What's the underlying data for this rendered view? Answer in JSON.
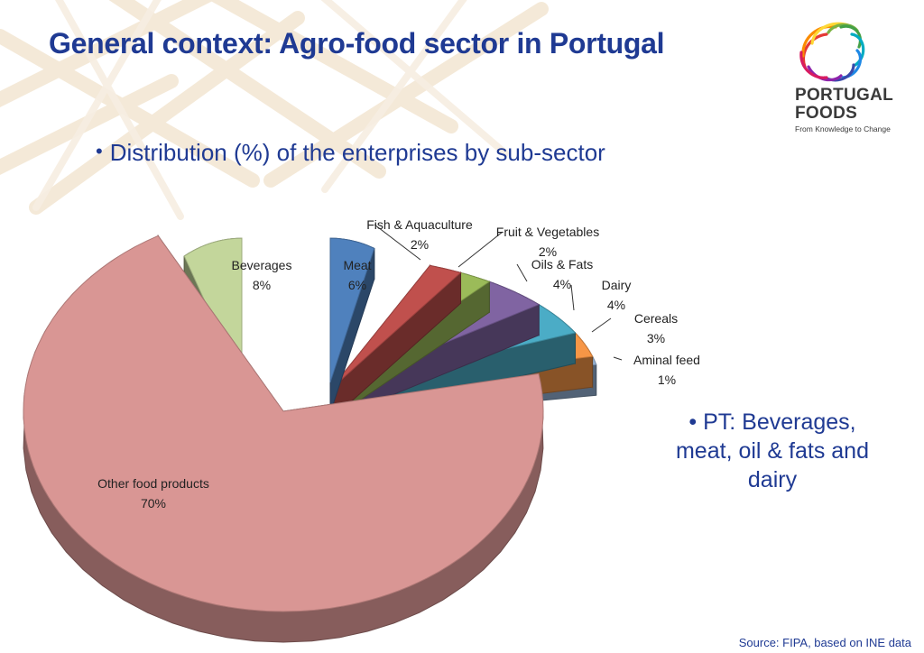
{
  "slide": {
    "title": "General context: Agro-food sector in Portugal",
    "bullet": "Distribution (%) of the enterprises by sub-sector",
    "note": "• PT: Beverages, meat, oil & fats and dairy",
    "source": "Source: FIPA, based on INE data"
  },
  "logo": {
    "line1": "PORTUGAL",
    "line2": "FOODS",
    "tagline": "From Knowledge to Change"
  },
  "colors": {
    "title": "#1f3a93",
    "background_deco": "#f1e2cc"
  },
  "chart_data": {
    "type": "pie",
    "title": "",
    "unit": "%",
    "legend": "none",
    "slices": [
      {
        "label": "Meat",
        "value": 6,
        "value_label": "6%",
        "color": "#4f81bd"
      },
      {
        "label": "Fish & Aquaculture",
        "value": 2,
        "value_label": "2%",
        "color": "#c0504d"
      },
      {
        "label": "Fruit & Vegetables",
        "value": 2,
        "value_label": "2%",
        "color": "#9bbb59"
      },
      {
        "label": "Oils & Fats",
        "value": 4,
        "value_label": "4%",
        "color": "#8064a2"
      },
      {
        "label": "Dairy",
        "value": 4,
        "value_label": "4%",
        "color": "#4bacc6"
      },
      {
        "label": "Cereals",
        "value": 3,
        "value_label": "3%",
        "color": "#f79646"
      },
      {
        "label": "Aminal feed",
        "value": 1,
        "value_label": "1%",
        "color": "#95b3d7"
      },
      {
        "label": "Other food products",
        "value": 70,
        "value_label": "70%",
        "color": "#d99694"
      },
      {
        "label": "Beverages",
        "value": 8,
        "value_label": "8%",
        "color": "#c3d69b"
      }
    ]
  }
}
